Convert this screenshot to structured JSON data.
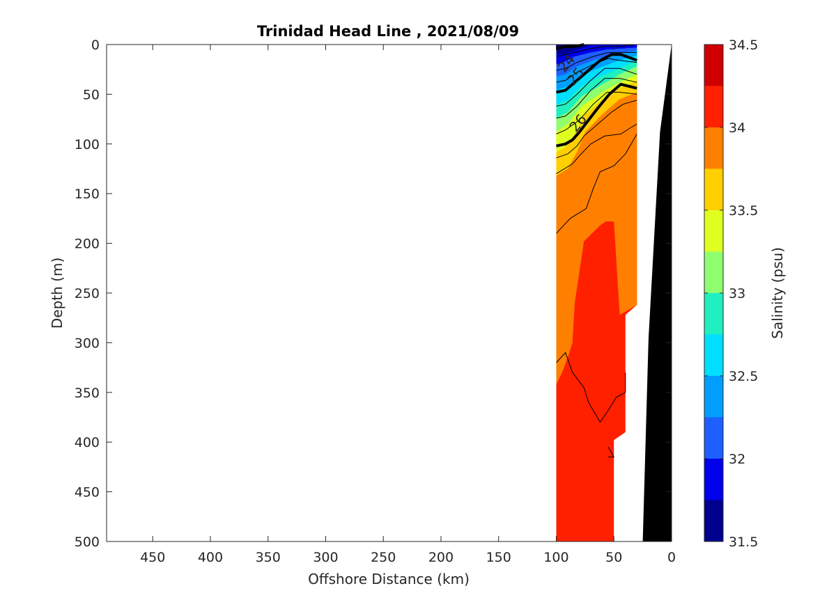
{
  "chart_data": {
    "type": "contour",
    "title": "Trinidad Head Line , 2021/08/09",
    "xlabel": "Offshore Distance (km)",
    "ylabel": "Depth (m)",
    "xlim": [
      490,
      0
    ],
    "ylim": [
      0,
      500
    ],
    "x_reversed": true,
    "y_reversed": true,
    "xticks": [
      450,
      400,
      350,
      300,
      250,
      200,
      150,
      100,
      50,
      0
    ],
    "yticks": [
      0,
      50,
      100,
      150,
      200,
      250,
      300,
      350,
      400,
      450,
      500
    ],
    "colorbar": {
      "label": "Salinity (psu)",
      "range": [
        31.5,
        34.5
      ],
      "ticks": [
        31.5,
        32,
        32.5,
        33,
        33.5,
        34,
        34.5
      ],
      "tick_labels": [
        "31.5",
        "32",
        "32.5",
        "33",
        "33.5",
        "34",
        "34.5"
      ],
      "levels": [
        31.5,
        31.75,
        32,
        32.25,
        32.5,
        32.75,
        33,
        33.25,
        33.5,
        33.75,
        34,
        34.25,
        34.5
      ],
      "colors": [
        "#00008f",
        "#0000ea",
        "#1f5fff",
        "#009fff",
        "#00dfff",
        "#20f0c0",
        "#8fff70",
        "#dfff20",
        "#ffcf00",
        "#ff7f00",
        "#ff2000",
        "#d00000"
      ]
    },
    "density_contours": [
      {
        "label": "24",
        "bold": false,
        "label_at": [
          88,
          22
        ]
      },
      {
        "label": "25",
        "bold": true,
        "label_at": [
          80,
          35
        ]
      },
      {
        "label": "26",
        "bold": true,
        "label_at": [
          78,
          82
        ]
      }
    ],
    "data_extent_km": [
      100,
      30
    ],
    "bathymetry_color": "#000000"
  }
}
